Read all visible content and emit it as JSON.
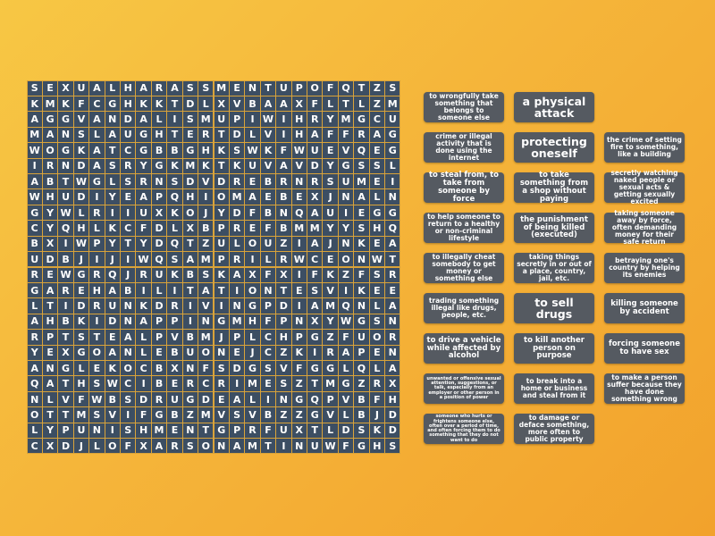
{
  "grid": {
    "rows": [
      "SEXUALHARASSMENTUPOFQTZS",
      "KMKFCGHKKTDLXVBAAXFLTLZM",
      "AGGVANDALISMUPIWIHRYMGCU",
      "MANSLAUGHTERTDLVIHAFFRAG",
      "WOGKATCGBBGHKSWKFWUEVQEG",
      "IRNDASRYGKMKTKUVAVDYGSSL",
      "ABTWGLSRNSDVDREBRNRSUMEI",
      "WHUDIYEAPQHIOMAEBEXJNALN",
      "GYWLRIIUXKOJYDFBNQAUIEGG",
      "CYQHLKCFDLXBPREFBMMYYSHQ",
      "BXIWPYTYDQTZULOUZIAJNKEA",
      "UDBJIJIWQSAMPRILRWCEONWT",
      "REWGRQJRUKBSKAXFXIFKZFSR",
      "GAREHABILITATIONTESVIKEE",
      "LTIDRUNKDRIVINGPDIAMQNLA",
      "AHBKIDNAPPINGMHFPNXYWGSN",
      "RPTSTEALPVBMJPLCHPGZFUOR",
      "YEXGOANLEBUONEJCZKIRAPEN",
      "ANGLEKOCBXNFSDGSVFGGLQLA",
      "QATHSWCIBERCRIMESZTMGZRX",
      "NLVFWBSDRUGDEALINGQPVBFH",
      "OTTMSVIFGBZMVSVBZZGVLBJD",
      "LYPUNISHMENTGPRFUXTLDSKD",
      "CXDJLOFXARSONAMTINUWFGHS"
    ]
  },
  "clues": {
    "columns": [
      [
        "to wrongfully take something that belongs to someone else",
        "crime or illegal activity that is done using the internet",
        "to steal from, to take from someone by force",
        "to help someone to return to a healthy or non-criminal lifestyle",
        "to illegally cheat somebody to get money or something else",
        "trading something illegal like drugs, people, etc.",
        "to drive a vehicle while affected by alcohol",
        "unwanted or offensive sexual attention, suggestions, or talk, especially from an employer or other person in a position of power",
        "someone who hurts or frightens someone else, often over a period of time, and often forcing them to do something that they do not want to do"
      ],
      [
        "a physical attack",
        "protecting oneself",
        "to take something from a shop without paying",
        "the punishment of being killed (executed)",
        "taking things secretly in or out of a place, country, jail, etc.",
        "to sell drugs",
        "to kill another person on purpose",
        "to break into a home or business and steal from it",
        "to damage or deface something, more often to public property"
      ],
      [
        "the crime of setting fire to something, like a building",
        "secretly watching naked people or sexual acts & getting sexually excited",
        "taking someone away by force, often demanding money for their safe return",
        "betraying one's country by helping its enemies",
        "killing someone by accident",
        "forcing someone to have sex",
        "to make a person suffer because they have done something wrong"
      ]
    ]
  }
}
